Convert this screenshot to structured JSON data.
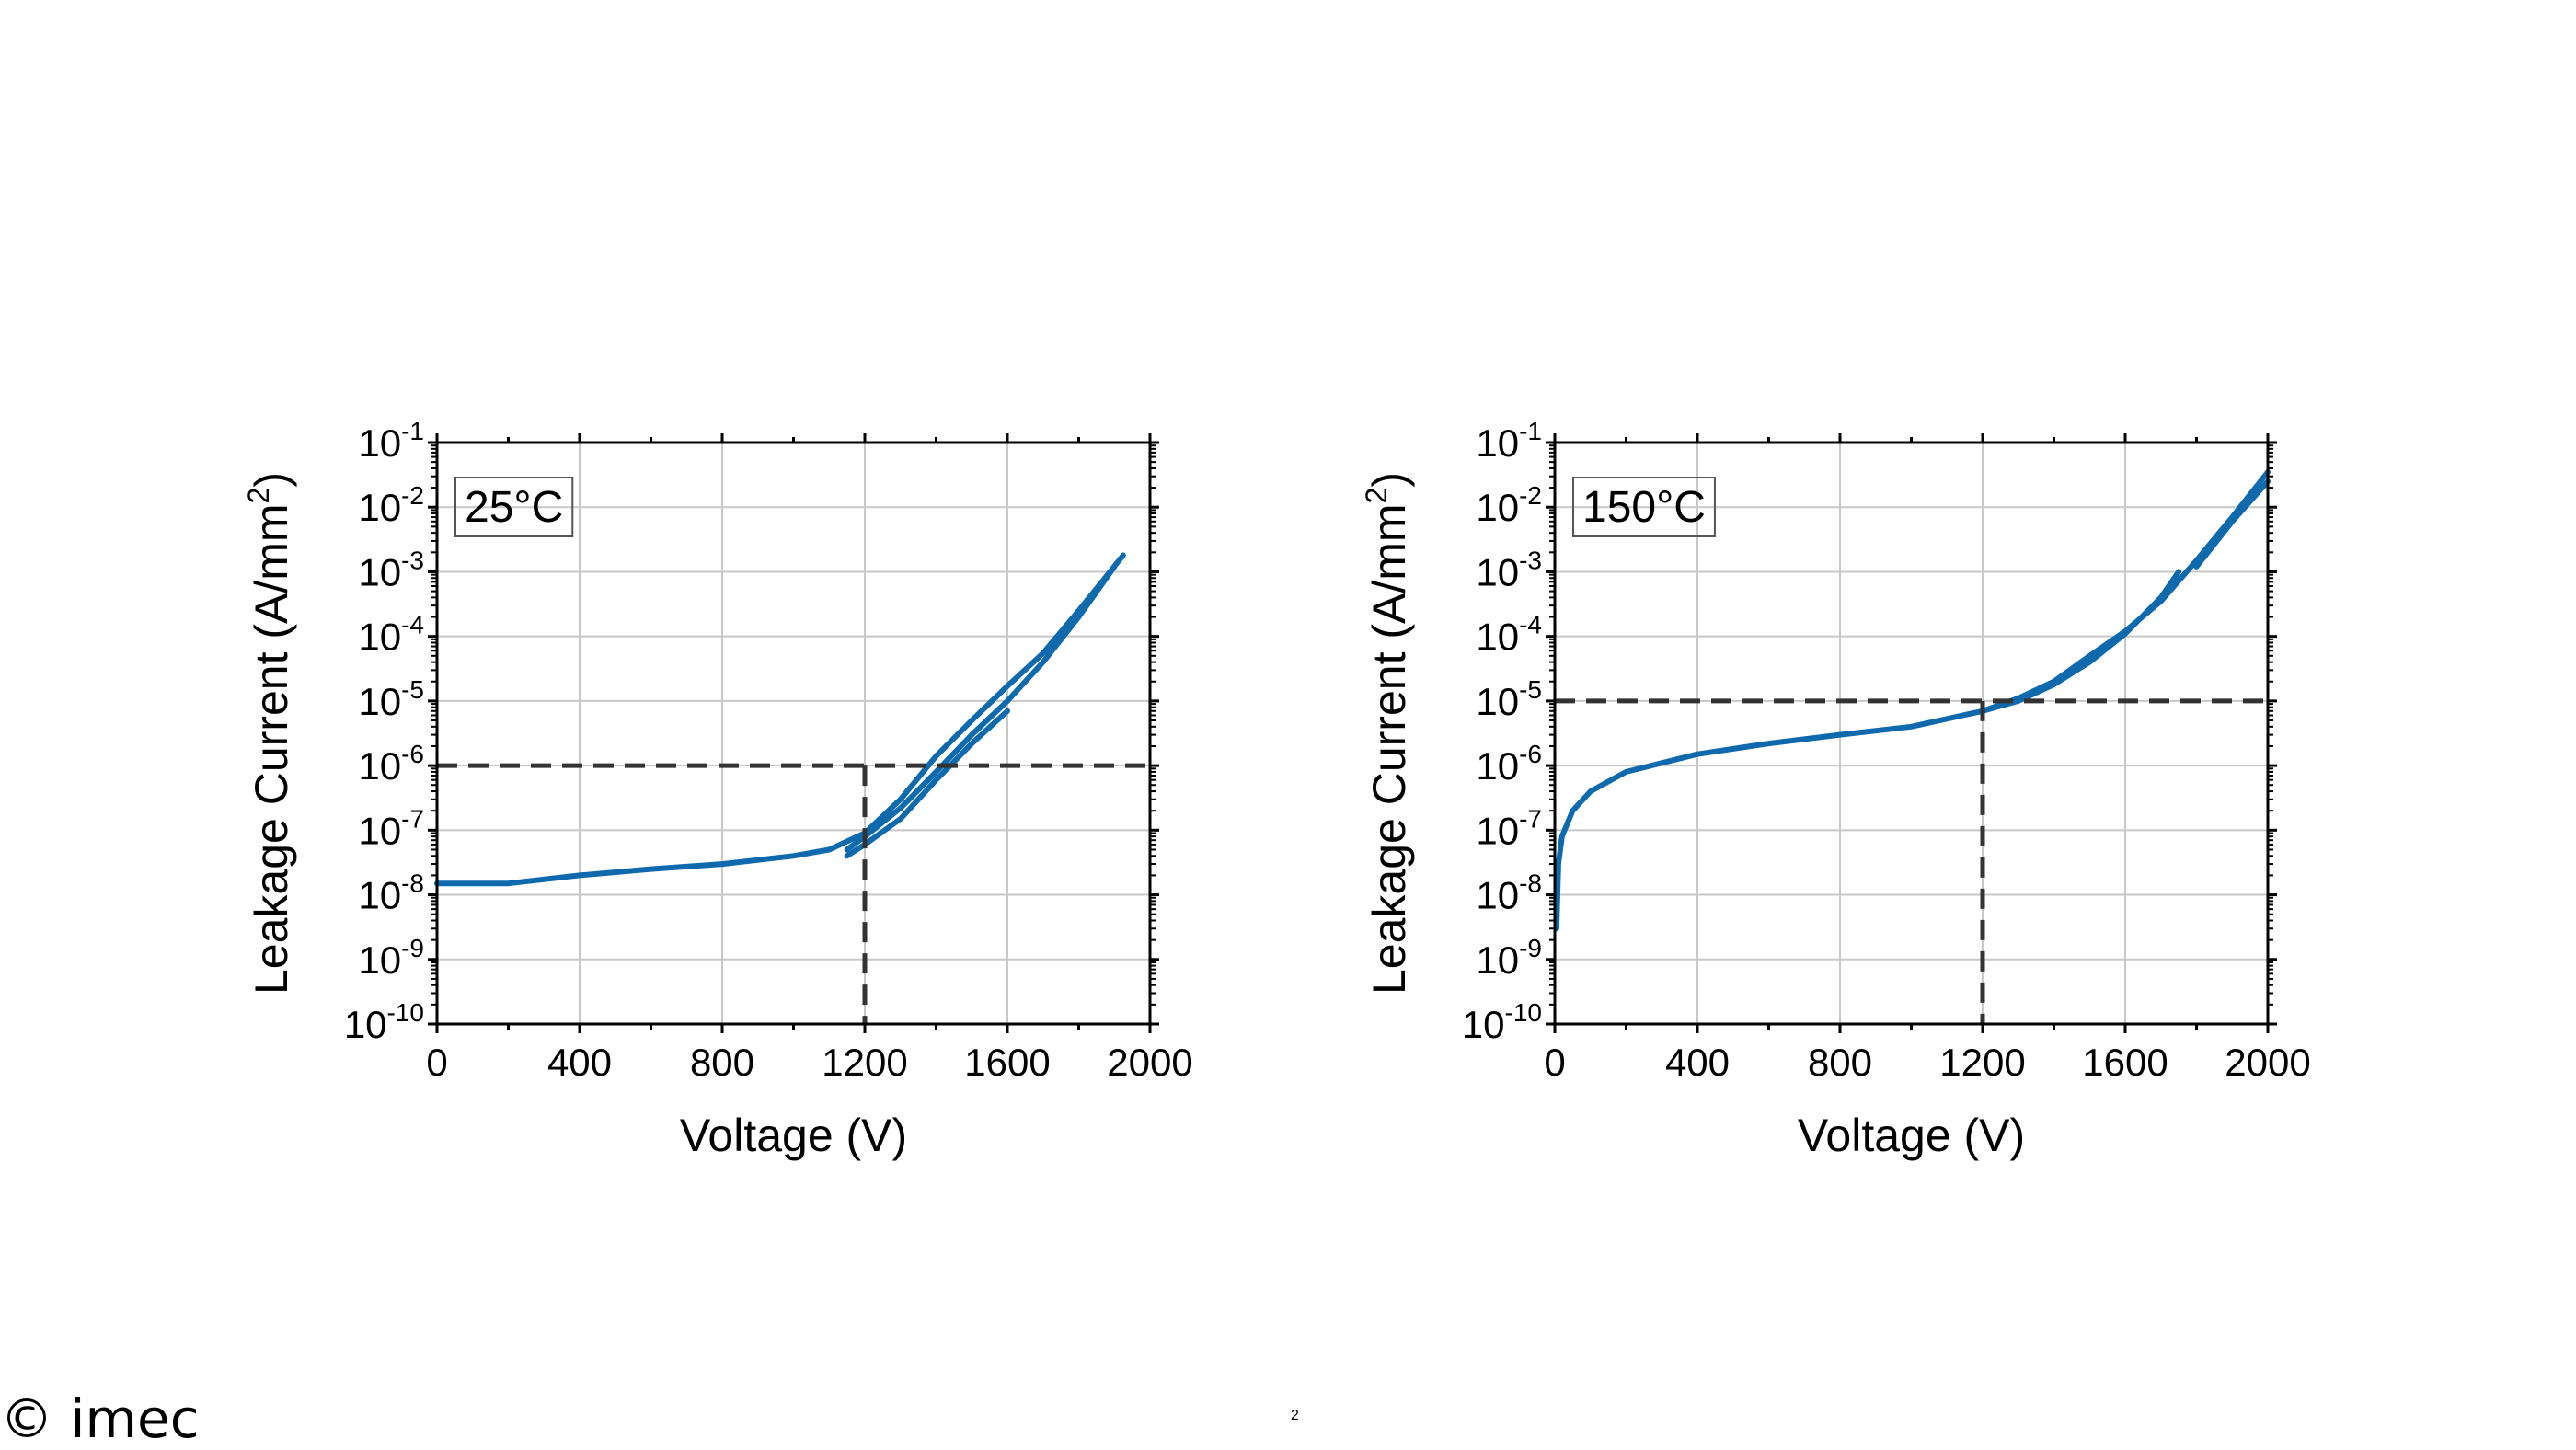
{
  "footer": {
    "copyright": "© imec",
    "page_number": "2"
  },
  "chart_data": [
    {
      "type": "line",
      "annotation": "25°C",
      "xlabel": "Voltage (V)",
      "ylabel": "Leakage Current (A/mm²)",
      "ylabel_main": "Leakage Current (A/mm",
      "ylabel_sup": "2",
      "ylabel_tail": ")",
      "xlim": [
        0,
        2000
      ],
      "ylim": [
        1e-10,
        0.1
      ],
      "yscale": "log",
      "grid": true,
      "xticks": [
        "0",
        "400",
        "800",
        "1200",
        "1600",
        "2000"
      ],
      "yticks": [
        {
          "base": "10",
          "exp": "-1"
        },
        {
          "base": "10",
          "exp": "-2"
        },
        {
          "base": "10",
          "exp": "-3"
        },
        {
          "base": "10",
          "exp": "-4"
        },
        {
          "base": "10",
          "exp": "-5"
        },
        {
          "base": "10",
          "exp": "-6"
        },
        {
          "base": "10",
          "exp": "-7"
        },
        {
          "base": "10",
          "exp": "-8"
        },
        {
          "base": "10",
          "exp": "-9"
        },
        {
          "base": "10",
          "exp": "-10"
        }
      ],
      "reference_lines": {
        "x": 1200,
        "y": 1e-06
      },
      "line_color": "#0e6aad",
      "series": [
        {
          "x": [
            0,
            200,
            400,
            600,
            800,
            1000,
            1100,
            1200,
            1300,
            1400,
            1500,
            1600,
            1700,
            1800,
            1925
          ],
          "y": [
            1.5e-08,
            1.5e-08,
            2e-08,
            2.5e-08,
            3e-08,
            4e-08,
            5e-08,
            9e-08,
            3e-07,
            1.4e-06,
            5e-06,
            1.7e-05,
            5.5e-05,
            0.00025,
            0.0018
          ]
        },
        {
          "x": [
            1150,
            1200,
            1300,
            1400,
            1500,
            1600,
            1700,
            1800,
            1900
          ],
          "y": [
            5e-08,
            8e-08,
            2.2e-07,
            8e-07,
            3e-06,
            1e-05,
            4e-05,
            0.0002,
            0.0012
          ]
        },
        {
          "x": [
            1150,
            1200,
            1300,
            1400,
            1500,
            1600
          ],
          "y": [
            4e-08,
            6e-08,
            1.5e-07,
            6e-07,
            2.2e-06,
            7e-06
          ]
        }
      ]
    },
    {
      "type": "line",
      "annotation": "150°C",
      "xlabel": "Voltage (V)",
      "ylabel": "Leakage Current (A/mm²)",
      "ylabel_main": "Leakage Current (A/mm",
      "ylabel_sup": "2",
      "ylabel_tail": ")",
      "xlim": [
        0,
        2000
      ],
      "ylim": [
        1e-10,
        0.1
      ],
      "yscale": "log",
      "grid": true,
      "xticks": [
        "0",
        "400",
        "800",
        "1200",
        "1600",
        "2000"
      ],
      "yticks": [
        {
          "base": "10",
          "exp": "-1"
        },
        {
          "base": "10",
          "exp": "-2"
        },
        {
          "base": "10",
          "exp": "-3"
        },
        {
          "base": "10",
          "exp": "-4"
        },
        {
          "base": "10",
          "exp": "-5"
        },
        {
          "base": "10",
          "exp": "-6"
        },
        {
          "base": "10",
          "exp": "-7"
        },
        {
          "base": "10",
          "exp": "-8"
        },
        {
          "base": "10",
          "exp": "-9"
        },
        {
          "base": "10",
          "exp": "-10"
        }
      ],
      "reference_lines": {
        "x": 1200,
        "y": 1e-05
      },
      "line_color": "#0e6aad",
      "series": [
        {
          "x": [
            5,
            10,
            20,
            50,
            100,
            200,
            400,
            600,
            800,
            1000,
            1200,
            1300,
            1400,
            1500,
            1600,
            1700,
            1800,
            1900,
            2000
          ],
          "y": [
            3e-09,
            3e-08,
            8e-08,
            2e-07,
            4e-07,
            8e-07,
            1.5e-06,
            2.2e-06,
            3e-06,
            4e-06,
            7e-06,
            1.1e-05,
            2e-05,
            5e-05,
            0.00012,
            0.00035,
            0.0015,
            0.007,
            0.035
          ]
        },
        {
          "x": [
            1200,
            1300,
            1400,
            1500,
            1600,
            1700,
            1750
          ],
          "y": [
            7e-06,
            1e-05,
            1.8e-05,
            4e-05,
            0.00011,
            0.0004,
            0.001
          ]
        },
        {
          "x": [
            1800,
            1900,
            2000
          ],
          "y": [
            0.0012,
            0.006,
            0.025
          ]
        }
      ]
    }
  ]
}
